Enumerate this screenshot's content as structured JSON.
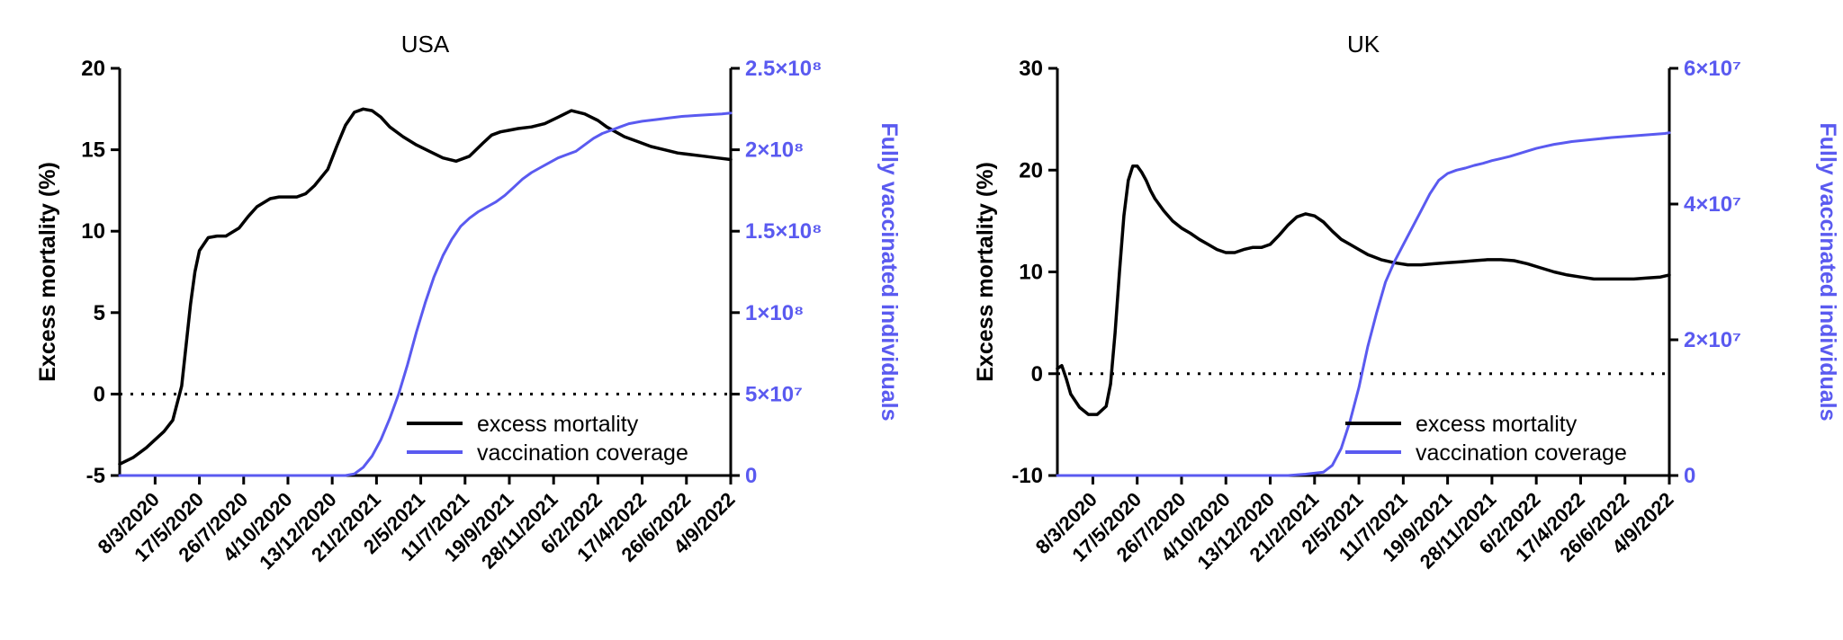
{
  "colors": {
    "mortality": "#000000",
    "vaccination": "#5a5af0"
  },
  "chart_data": [
    {
      "type": "line",
      "title": "USA",
      "ylabel": "Excess mortality (%)",
      "y2label": "Fully vaccinated individuals",
      "ylim": [
        -5,
        20
      ],
      "y2lim": [
        0,
        250000000
      ],
      "y_ticks": [
        "-5",
        "0",
        "5",
        "10",
        "15",
        "20"
      ],
      "y2_ticks": [
        "0",
        "5×10⁷",
        "1×10⁸",
        "1.5×10⁸",
        "2×10⁸",
        "2.5×10⁸"
      ],
      "x_tick_labels": [
        "8/3/2020",
        "17/5/2020",
        "26/7/2020",
        "4/10/2020",
        "13/12/2020",
        "21/2/2021",
        "2/5/2021",
        "11/7/2021",
        "19/9/2021",
        "28/11/2021",
        "6/2/2022",
        "17/4/2022",
        "26/6/2022",
        "4/9/2022"
      ],
      "xlim": [
        "2020-01-12",
        "2022-09-04"
      ],
      "reference_line": 0,
      "legend_position": "bottom-right",
      "series": [
        {
          "name": "excess mortality",
          "axis": "left",
          "x": [
            "2020-01-12",
            "2020-02-02",
            "2020-02-23",
            "2020-03-08",
            "2020-03-22",
            "2020-04-05",
            "2020-04-19",
            "2020-04-26",
            "2020-05-03",
            "2020-05-10",
            "2020-05-17",
            "2020-05-31",
            "2020-06-14",
            "2020-06-28",
            "2020-07-19",
            "2020-08-02",
            "2020-08-16",
            "2020-09-06",
            "2020-09-20",
            "2020-10-04",
            "2020-10-18",
            "2020-11-01",
            "2020-11-15",
            "2020-12-06",
            "2020-12-20",
            "2021-01-03",
            "2021-01-17",
            "2021-01-31",
            "2021-02-14",
            "2021-02-28",
            "2021-03-14",
            "2021-04-04",
            "2021-04-25",
            "2021-05-16",
            "2021-06-06",
            "2021-06-27",
            "2021-07-18",
            "2021-08-08",
            "2021-08-22",
            "2021-09-05",
            "2021-09-19",
            "2021-10-03",
            "2021-10-24",
            "2021-11-14",
            "2021-12-05",
            "2021-12-26",
            "2022-01-16",
            "2022-02-06",
            "2022-02-20",
            "2022-03-06",
            "2022-03-20",
            "2022-04-10",
            "2022-05-01",
            "2022-05-22",
            "2022-06-12",
            "2022-07-03",
            "2022-07-24",
            "2022-08-14",
            "2022-09-04"
          ],
          "values": [
            -4.3,
            -3.9,
            -3.3,
            -2.8,
            -2.3,
            -1.6,
            0.5,
            3.0,
            5.5,
            7.5,
            8.8,
            9.6,
            9.7,
            9.7,
            10.2,
            10.9,
            11.5,
            12.0,
            12.1,
            12.1,
            12.1,
            12.3,
            12.8,
            13.8,
            15.2,
            16.5,
            17.3,
            17.5,
            17.4,
            17.0,
            16.4,
            15.8,
            15.3,
            14.9,
            14.5,
            14.3,
            14.6,
            15.4,
            15.9,
            16.1,
            16.2,
            16.3,
            16.4,
            16.6,
            17.0,
            17.4,
            17.2,
            16.8,
            16.4,
            16.1,
            15.8,
            15.5,
            15.2,
            15.0,
            14.8,
            14.7,
            14.6,
            14.5,
            14.4
          ]
        },
        {
          "name": "vaccination coverage",
          "axis": "right",
          "x": [
            "2020-01-12",
            "2020-12-13",
            "2021-01-03",
            "2021-01-17",
            "2021-01-31",
            "2021-02-14",
            "2021-02-28",
            "2021-03-14",
            "2021-03-28",
            "2021-04-11",
            "2021-04-25",
            "2021-05-09",
            "2021-05-23",
            "2021-06-06",
            "2021-06-20",
            "2021-07-04",
            "2021-07-18",
            "2021-08-01",
            "2021-08-15",
            "2021-08-29",
            "2021-09-12",
            "2021-09-26",
            "2021-10-10",
            "2021-10-24",
            "2021-11-07",
            "2021-11-21",
            "2021-12-05",
            "2021-12-19",
            "2022-01-02",
            "2022-01-16",
            "2022-01-30",
            "2022-02-13",
            "2022-02-27",
            "2022-03-13",
            "2022-03-27",
            "2022-04-17",
            "2022-05-08",
            "2022-05-29",
            "2022-06-19",
            "2022-07-10",
            "2022-07-31",
            "2022-08-21",
            "2022-09-04"
          ],
          "values": [
            0,
            0,
            0,
            1000000,
            5000000,
            12000000,
            22000000,
            35000000,
            50000000,
            68000000,
            88000000,
            106000000,
            122000000,
            135000000,
            145000000,
            153000000,
            158000000,
            162000000,
            165000000,
            168000000,
            172000000,
            177000000,
            182000000,
            186000000,
            189000000,
            192000000,
            195000000,
            197000000,
            199000000,
            203000000,
            207000000,
            210000000,
            212000000,
            214000000,
            216000000,
            217500000,
            218500000,
            219500000,
            220500000,
            221000000,
            221500000,
            222000000,
            222500000
          ]
        }
      ]
    },
    {
      "type": "line",
      "title": "UK",
      "ylabel": "Excess mortality (%)",
      "y2label": "Fully vaccinated individuals",
      "ylim": [
        -10,
        30
      ],
      "y2lim": [
        0,
        60000000
      ],
      "y_ticks": [
        "-10",
        "0",
        "10",
        "20",
        "30"
      ],
      "y2_ticks": [
        "0",
        "2×10⁷",
        "4×10⁷",
        "6×10⁷"
      ],
      "x_tick_labels": [
        "8/3/2020",
        "17/5/2020",
        "26/7/2020",
        "4/10/2020",
        "13/12/2020",
        "21/2/2021",
        "2/5/2021",
        "11/7/2021",
        "19/9/2021",
        "28/11/2021",
        "6/2/2022",
        "17/4/2022",
        "26/6/2022",
        "4/9/2022"
      ],
      "xlim": [
        "2020-01-12",
        "2022-09-04"
      ],
      "reference_line": 0,
      "legend_position": "bottom-right",
      "series": [
        {
          "name": "excess mortality",
          "axis": "left",
          "x": [
            "2020-01-12",
            "2020-01-19",
            "2020-01-26",
            "2020-02-02",
            "2020-02-16",
            "2020-03-01",
            "2020-03-15",
            "2020-03-29",
            "2020-04-05",
            "2020-04-12",
            "2020-04-19",
            "2020-04-26",
            "2020-05-03",
            "2020-05-10",
            "2020-05-17",
            "2020-05-24",
            "2020-05-31",
            "2020-06-07",
            "2020-06-14",
            "2020-06-28",
            "2020-07-12",
            "2020-07-26",
            "2020-08-09",
            "2020-08-23",
            "2020-09-06",
            "2020-09-20",
            "2020-10-04",
            "2020-10-18",
            "2020-11-01",
            "2020-11-15",
            "2020-11-29",
            "2020-12-13",
            "2020-12-27",
            "2021-01-10",
            "2021-01-24",
            "2021-02-07",
            "2021-02-21",
            "2021-03-07",
            "2021-03-21",
            "2021-04-04",
            "2021-04-18",
            "2021-05-02",
            "2021-05-16",
            "2021-06-06",
            "2021-06-27",
            "2021-07-18",
            "2021-08-08",
            "2021-08-29",
            "2021-09-19",
            "2021-10-10",
            "2021-10-31",
            "2021-11-21",
            "2021-12-12",
            "2022-01-02",
            "2022-01-23",
            "2022-02-13",
            "2022-03-06",
            "2022-03-27",
            "2022-04-17",
            "2022-05-08",
            "2022-05-29",
            "2022-06-19",
            "2022-07-10",
            "2022-07-31",
            "2022-08-21",
            "2022-09-04"
          ],
          "values": [
            0.5,
            0.8,
            -0.5,
            -2.0,
            -3.3,
            -4.0,
            -4.0,
            -3.2,
            -1.0,
            4.0,
            10.0,
            15.5,
            19.0,
            20.4,
            20.4,
            19.8,
            19.0,
            18.0,
            17.2,
            16.0,
            15.0,
            14.3,
            13.8,
            13.2,
            12.7,
            12.2,
            11.9,
            11.9,
            12.2,
            12.4,
            12.4,
            12.7,
            13.6,
            14.6,
            15.4,
            15.7,
            15.5,
            14.9,
            14.0,
            13.2,
            12.7,
            12.2,
            11.7,
            11.2,
            10.9,
            10.7,
            10.7,
            10.8,
            10.9,
            11.0,
            11.1,
            11.2,
            11.2,
            11.1,
            10.8,
            10.4,
            10.0,
            9.7,
            9.5,
            9.3,
            9.3,
            9.3,
            9.3,
            9.4,
            9.5,
            9.7
          ]
        },
        {
          "name": "vaccination coverage",
          "axis": "right",
          "x": [
            "2020-01-12",
            "2021-01-10",
            "2021-02-07",
            "2021-03-07",
            "2021-03-21",
            "2021-04-04",
            "2021-04-18",
            "2021-05-02",
            "2021-05-16",
            "2021-05-30",
            "2021-06-13",
            "2021-06-27",
            "2021-07-11",
            "2021-07-25",
            "2021-08-08",
            "2021-08-22",
            "2021-09-05",
            "2021-09-19",
            "2021-10-03",
            "2021-10-17",
            "2021-10-31",
            "2021-11-14",
            "2021-11-28",
            "2021-12-12",
            "2021-12-26",
            "2022-01-09",
            "2022-01-23",
            "2022-02-06",
            "2022-02-20",
            "2022-03-06",
            "2022-03-20",
            "2022-04-03",
            "2022-04-24",
            "2022-05-15",
            "2022-06-05",
            "2022-06-26",
            "2022-07-17",
            "2022-08-07",
            "2022-08-28",
            "2022-09-04"
          ],
          "values": [
            0,
            0,
            200000,
            500000,
            1500000,
            4000000,
            8000000,
            13000000,
            19000000,
            24000000,
            28500000,
            31500000,
            34000000,
            36500000,
            39000000,
            41500000,
            43500000,
            44500000,
            45000000,
            45300000,
            45700000,
            46000000,
            46400000,
            46700000,
            47000000,
            47400000,
            47800000,
            48200000,
            48500000,
            48800000,
            49000000,
            49200000,
            49400000,
            49600000,
            49800000,
            49950000,
            50100000,
            50250000,
            50400000,
            50500000
          ]
        }
      ]
    }
  ]
}
